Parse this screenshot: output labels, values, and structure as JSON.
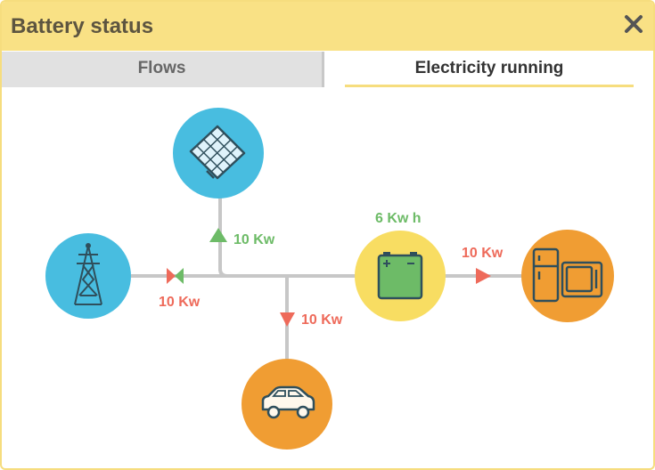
{
  "window": {
    "title": "Battery status"
  },
  "tabs": [
    {
      "label": "Flows",
      "active": false
    },
    {
      "label": "Electricity running",
      "active": true
    }
  ],
  "diagram": {
    "nodes": [
      {
        "name": "solar-panel",
        "icon": "solar-panel-icon",
        "color": "#48bde0"
      },
      {
        "name": "grid-tower",
        "icon": "transmission-tower-icon",
        "color": "#48bde0"
      },
      {
        "name": "battery",
        "icon": "battery-icon",
        "color": "#f8dd62"
      },
      {
        "name": "appliances",
        "icon": "fridge-tv-icon",
        "color": "#f09d33"
      },
      {
        "name": "car",
        "icon": "car-icon",
        "color": "#f09d33"
      }
    ],
    "flows": {
      "solar": "10 Kw",
      "grid": "10 Kw",
      "car": "10 Kw",
      "appliances": "10 Kw"
    },
    "battery_level": "6 Kw h",
    "colors": {
      "green": "#6dbb67",
      "red": "#ee6a5a",
      "line": "#c7c7c7"
    }
  }
}
